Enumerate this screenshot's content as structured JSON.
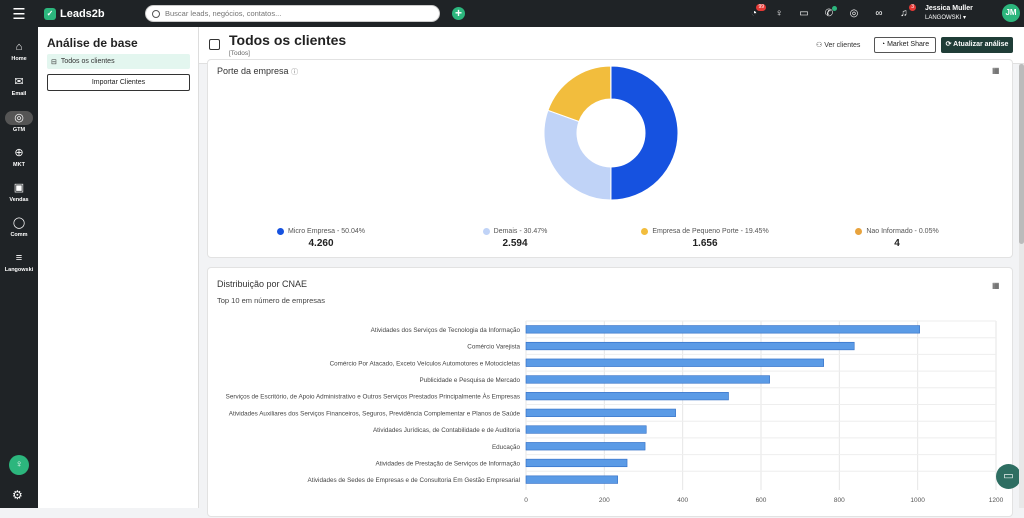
{
  "app": {
    "name": "Leads2b"
  },
  "topbar": {
    "search_placeholder": "Buscar leads, negócios, contatos...",
    "badge_count_1": "99",
    "badge_count_2": "3",
    "user_name": "Jessica Muller",
    "user_org": "LANGOWSKI",
    "user_initials": "JM"
  },
  "sidenav": {
    "items": [
      {
        "label": "Home"
      },
      {
        "label": "Email"
      },
      {
        "label": "GTM"
      },
      {
        "label": "MKT"
      },
      {
        "label": "Vendas"
      },
      {
        "label": "Comm"
      },
      {
        "label": "Langowski"
      }
    ]
  },
  "leftpanel": {
    "title": "Análise de base",
    "item_label": "Todos os clientes",
    "import_button": "Importar Clientes"
  },
  "header": {
    "title": "Todos os clientes",
    "subtitle": "[Todos]",
    "link_label": "Ver clientes",
    "btn_market": "Market Share",
    "btn_update": "Atualizar análise"
  },
  "donut_card": {
    "title": "Porte da empresa"
  },
  "bar_card": {
    "title": "Distribuição por CNAE",
    "subtitle": "Top 10 em número de empresas"
  },
  "chart_data": [
    {
      "type": "pie",
      "title": "Porte da empresa",
      "categories": [
        "Micro Empresa - 50.04%",
        "Demais - 30.47%",
        "Empresa de Pequeno Porte - 19.45%",
        "Nao Informado - 0.05%"
      ],
      "values": [
        4260,
        2594,
        1656,
        4
      ],
      "value_labels": [
        "4.260",
        "2.594",
        "1.656",
        "4"
      ],
      "colors": [
        "#1652e0",
        "#c0d3f7",
        "#f2bd3d",
        "#e8a33d"
      ],
      "legend": "bottom"
    },
    {
      "type": "bar",
      "orientation": "horizontal",
      "title": "Distribuição por CNAE",
      "subtitle": "Top 10 em número de empresas",
      "categories": [
        "Atividades dos Serviços de Tecnologia da Informação",
        "Comércio Varejista",
        "Comércio Por Atacado, Exceto Veículos Automotores e Motocicletas",
        "Publicidade e Pesquisa de Mercado",
        "Serviços de Escritório, de Apoio Administrativo e Outros Serviços Prestados Principalmente Às Empresas",
        "Atividades Auxiliares dos Serviços Financeiros, Seguros, Previdência Complementar e Planos de Saúde",
        "Atividades Jurídicas, de Contabilidade e de Auditoria",
        "Educação",
        "Atividades de Prestação de Serviços de Informação",
        "Atividades de Sedes de Empresas e de Consultoria Em Gestão Empresarial"
      ],
      "values": [
        1005,
        838,
        760,
        622,
        517,
        382,
        307,
        304,
        258,
        234
      ],
      "xlim": [
        0,
        1200
      ],
      "xticks": [
        0,
        200,
        400,
        600,
        800,
        1000,
        1200
      ],
      "color": "#5b9be6",
      "grid": true
    }
  ]
}
